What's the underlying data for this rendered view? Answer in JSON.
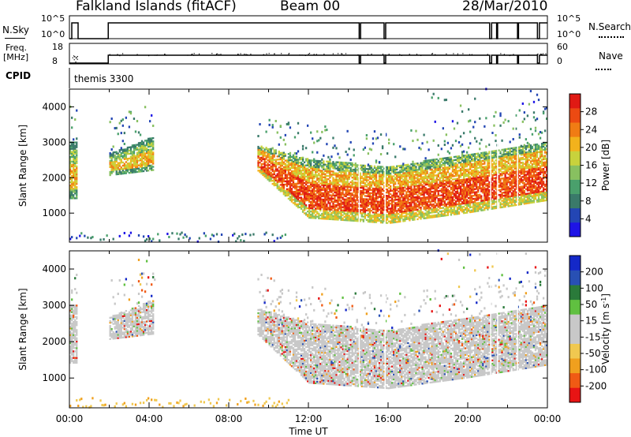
{
  "header": {
    "radar": "Falkland Islands (fitACF)",
    "beam": "Beam 00",
    "date": "28/Mar/2010"
  },
  "top_panels": {
    "nsky_label": "N.Sky",
    "nsky_ticks": [
      "10^5",
      "10^0"
    ],
    "nsearch_label": "N.Search",
    "nsearch_ticks": [
      "10^5",
      "10^0"
    ],
    "freq_label": "Freq.",
    "freq_unit": "[MHz]",
    "freq_ticks": [
      "18",
      "8"
    ],
    "nave_label": "Nave",
    "nave_ticks": [
      "60",
      "0"
    ],
    "cpid_label": "CPID",
    "cpid_value": "themis 3300"
  },
  "chart_data": [
    {
      "type": "heatmap",
      "name": "power-panel",
      "ylabel": "Slant Range [km]",
      "xlabel": "",
      "ylim": [
        180,
        4500
      ],
      "xlim": [
        0,
        24
      ],
      "yticks": [
        "1000",
        "2000",
        "3000",
        "4000"
      ],
      "colorbar": {
        "label": "Power [dB]",
        "ticks": [
          "28",
          "24",
          "20",
          "16",
          "12",
          "8",
          "4"
        ],
        "range": [
          0,
          32
        ],
        "colors": [
          "#1e14e6",
          "#2346b4",
          "#3a7a6a",
          "#4aa06c",
          "#88c060",
          "#c8d23c",
          "#f2b21c",
          "#f07c14",
          "#ec4a12",
          "#e01a14"
        ]
      },
      "scatter_regions": [
        {
          "t": [
            0.0,
            0.35
          ],
          "r": [
            1300,
            3150
          ],
          "level": 20
        },
        {
          "t": [
            1.95,
            4.2
          ],
          "r": [
            2000,
            3200
          ],
          "level": 16
        },
        {
          "t": [
            9.4,
            13.5
          ],
          "r": [
            700,
            2800
          ],
          "level": 24
        },
        {
          "t": [
            13.5,
            24.0
          ],
          "r": [
            600,
            2900
          ],
          "level": 26
        },
        {
          "t": [
            0.0,
            11.0
          ],
          "r": [
            180,
            450
          ],
          "level": 6
        }
      ]
    },
    {
      "type": "heatmap",
      "name": "velocity-panel",
      "ylabel": "Slant Range [km]",
      "xlabel": "Time UT",
      "ylim": [
        180,
        4500
      ],
      "xlim": [
        0,
        24
      ],
      "yticks": [
        "1000",
        "2000",
        "3000",
        "4000"
      ],
      "xticks": [
        "00:00",
        "04:00",
        "08:00",
        "12:00",
        "16:00",
        "20:00",
        "00:00"
      ],
      "colorbar": {
        "label": "Velocity [m s",
        "label_exp": "-1",
        "label_end": "]",
        "ticks": [
          "200",
          "100",
          "50",
          "15",
          "-15",
          "-50",
          "-100",
          "-200"
        ],
        "range": [
          -250,
          250
        ],
        "colors": [
          "#e81414",
          "#f05a14",
          "#f0a01e",
          "#f0c850",
          "#c8c8c8",
          "#c8c8c8",
          "#60c040",
          "#2a7a3a",
          "#2850b4",
          "#1428c8"
        ]
      }
    }
  ]
}
